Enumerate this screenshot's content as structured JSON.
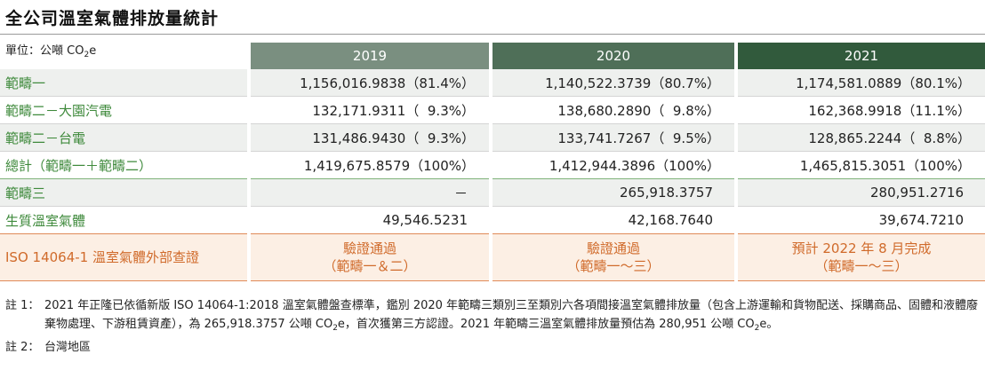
{
  "title": "全公司溫室氣體排放量統計",
  "unit": {
    "prefix": "單位：公噸 CO",
    "sub": "2",
    "suffix": "e"
  },
  "years": [
    "2019",
    "2020",
    "2021"
  ],
  "rows": [
    {
      "label": "範疇一",
      "values": [
        "1,156,016.9838（81.4%）",
        "1,140,522.3739（80.7%）",
        "1,174,581.0889（80.1%）"
      ]
    },
    {
      "label": "範疇二－大園汽電",
      "values": [
        "132,171.9311（  9.3%）",
        "138,680.2890（  9.8%）",
        "162,368.9918（11.1%）"
      ]
    },
    {
      "label": "範疇二－台電",
      "values": [
        "131,486.9430（  9.3%）",
        "133,741.7267（  9.5%）",
        "128,865.2244（  8.8%）"
      ]
    },
    {
      "label": "總計（範疇一＋範疇二）",
      "values": [
        "1,419,675.8579（100%）",
        "1,412,944.3896（100%）",
        "1,465,815.3051（100%）"
      ]
    },
    {
      "label": "範疇三",
      "values": [
        "－",
        "265,918.3757",
        "280,951.2716"
      ]
    },
    {
      "label": "生質溫室氣體",
      "values": [
        "49,546.5231",
        "42,168.7640",
        "39,674.7210"
      ]
    }
  ],
  "iso": {
    "label": "ISO 14064-1 溫室氣體外部查證",
    "cells": [
      {
        "line1": "驗證通過",
        "line2": "（範疇一＆二）"
      },
      {
        "line1": "驗證通過",
        "line2": "（範疇一～三）"
      },
      {
        "line1": "預計 2022 年 8 月完成",
        "line2": "（範疇一～三）"
      }
    ]
  },
  "notes": [
    {
      "key": "註 1：",
      "part1": "2021 年正隆已依循新版 ISO 14064-1:2018 溫室氣體盤查標準，鑑別 2020 年範疇三類別三至類別六各項間接溫室氣體排放量（包含上游運輸和貨物配送、採購商品、固體和液體廢棄物處理、下游租賃資產），為 265,918.3757 公噸 CO",
      "sub1": "2",
      "part2": "e，首次獲第三方認證。2021 年範疇三溫室氣體排放量預估為 280,951 公噸 CO",
      "sub2": "2",
      "part3": "e。"
    },
    {
      "key": "註 2：",
      "text": "台灣地區"
    }
  ]
}
